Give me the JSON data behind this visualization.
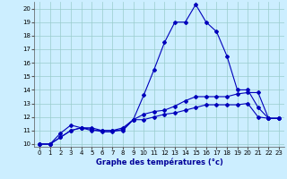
{
  "xlabel": "Graphe des températures (°c)",
  "xlim": [
    -0.5,
    23.5
  ],
  "ylim": [
    9.8,
    20.5
  ],
  "yticks": [
    10,
    11,
    12,
    13,
    14,
    15,
    16,
    17,
    18,
    19,
    20
  ],
  "xticks": [
    0,
    1,
    2,
    3,
    4,
    5,
    6,
    7,
    8,
    9,
    10,
    11,
    12,
    13,
    14,
    15,
    16,
    17,
    18,
    19,
    20,
    21,
    22,
    23
  ],
  "background_color": "#cceeff",
  "grid_color": "#99cccc",
  "line_color": "#0000bb",
  "line1_y": [
    10.0,
    10.0,
    10.8,
    11.4,
    11.2,
    11.1,
    10.9,
    10.9,
    11.1,
    11.8,
    13.6,
    15.5,
    17.5,
    19.0,
    19.0,
    20.3,
    19.0,
    18.3,
    16.5,
    14.0,
    14.0,
    12.7,
    11.9,
    11.9
  ],
  "line2_y": [
    10.0,
    10.0,
    10.5,
    11.0,
    11.2,
    11.2,
    11.0,
    11.0,
    11.2,
    11.8,
    12.2,
    12.4,
    12.5,
    12.8,
    13.2,
    13.5,
    13.5,
    13.5,
    13.5,
    13.7,
    13.8,
    13.8,
    11.9,
    11.9
  ],
  "line3_y": [
    10.0,
    10.0,
    10.5,
    11.0,
    11.2,
    11.0,
    11.0,
    11.0,
    11.0,
    11.8,
    11.8,
    12.0,
    12.2,
    12.3,
    12.5,
    12.7,
    12.9,
    12.9,
    12.9,
    12.9,
    13.0,
    12.0,
    11.9,
    11.9
  ],
  "tick_labelsize": 5.0,
  "xlabel_fontsize": 6.0,
  "xlabel_color": "#000099",
  "marker_size": 2.0,
  "linewidth": 0.8
}
